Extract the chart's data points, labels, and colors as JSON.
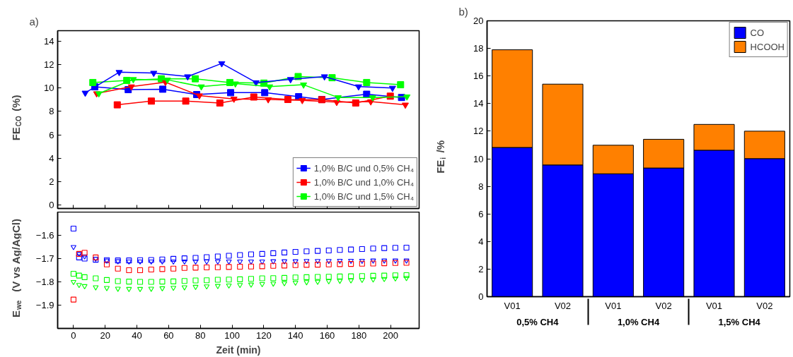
{
  "chart_data": [
    {
      "type": "line",
      "ylabel": "FE$_{CO}$ (%)",
      "annotations": [
        "a)"
      ],
      "xlim": [
        -10,
        218
      ],
      "ylim": [
        -0.3,
        14.9
      ],
      "xticks": [
        0,
        20,
        40,
        60,
        80,
        100,
        120,
        140,
        160,
        180,
        200
      ],
      "yticks": [
        0,
        2,
        4,
        6,
        8,
        10,
        12,
        14
      ],
      "tick_labels": "y",
      "grid": false,
      "legend": "bottom right",
      "series": [
        {
          "name": "1,0% B/C und 0,5% CH₄",
          "color": "#0000ff",
          "marker": "square",
          "x": [
            13.4,
            34.5,
            56.3,
            77.7,
            99.1,
            120.6,
            142,
            156.6,
            184.9,
            206.9
          ],
          "values": [
            10.1,
            9.86,
            9.9,
            9.44,
            9.6,
            9.6,
            9.26,
            9.02,
            9.47,
            9.19
          ]
        },
        {
          "name": "1,0% B/C und 1,0% CH₄",
          "color": "#ff0000",
          "marker": "square",
          "x": [
            27.6,
            49.1,
            70.8,
            92.3,
            113.7,
            135.2,
            156.6,
            178,
            199.8
          ],
          "values": [
            8.56,
            8.88,
            8.88,
            8.72,
            9.23,
            9.02,
            9.0,
            8.72,
            9.3
          ]
        },
        {
          "name": "1,0% B/C und 1,5% CH₄",
          "color": "#00ff00",
          "marker": "square",
          "x": [
            12.2,
            33.6,
            55.4,
            76.8,
            98.6,
            120.1,
            141.7,
            163.1,
            184.9,
            206.3
          ],
          "values": [
            10.47,
            10.65,
            10.79,
            10.79,
            10.47,
            10.42,
            10.98,
            10.88,
            10.47,
            10.28
          ]
        },
        {
          "color": "#0000ff",
          "marker": "triangle",
          "x": [
            7.4,
            28.8,
            50.6,
            72,
            93.5,
            115.1,
            136.9,
            158.3,
            179.8,
            201.2
          ],
          "values": [
            9.58,
            11.35,
            11.28,
            10.98,
            12.1,
            10.47,
            10.74,
            10.98,
            10.12,
            10.0
          ]
        },
        {
          "color": "#ff0000",
          "marker": "triangle",
          "x": [
            14.6,
            36.5,
            58,
            79.4,
            101.2,
            122.8,
            144.3,
            166,
            187.5,
            209.3
          ],
          "values": [
            9.53,
            10.12,
            10.5,
            9.35,
            9.07,
            9.02,
            8.95,
            8.79,
            8.84,
            8.56
          ]
        },
        {
          "color": "#00ff00",
          "marker": "triangle",
          "x": [
            16,
            37.7,
            59.2,
            80.6,
            102.1,
            123.7,
            145.1,
            166.9,
            188.7,
            210.3
          ],
          "values": [
            9.53,
            10.74,
            10.7,
            10.12,
            10.37,
            10.12,
            10.28,
            9.19,
            9.19,
            9.26
          ]
        }
      ]
    },
    {
      "type": "scatter",
      "xlabel": "Zeit (min)",
      "ylabel": "E$_{we}$  (V vs Ag/AgCl)",
      "xlim": [
        -10,
        218
      ],
      "ylim": [
        -2.0,
        -1.5
      ],
      "xticks": [
        0,
        20,
        40,
        60,
        80,
        100,
        120,
        140,
        160,
        180,
        200
      ],
      "yticks": [
        -1.9,
        -1.8,
        -1.7,
        -1.6
      ],
      "grid": false,
      "x": [
        0,
        3.5,
        7,
        14,
        21,
        28,
        35,
        42,
        49,
        56,
        63,
        70,
        77,
        84,
        91,
        98,
        105,
        112,
        119,
        126,
        133,
        140,
        147,
        154,
        161,
        168,
        175,
        182,
        189,
        196,
        203,
        210
      ],
      "series": [
        {
          "color": "#0000ff",
          "marker": "square",
          "values": [
            -1.571,
            -1.695,
            -1.7,
            -1.705,
            -1.707,
            -1.708,
            -1.708,
            -1.707,
            -1.706,
            -1.704,
            -1.701,
            -1.699,
            -1.697,
            -1.694,
            -1.691,
            -1.688,
            -1.685,
            -1.682,
            -1.68,
            -1.677,
            -1.674,
            -1.671,
            -1.669,
            -1.667,
            -1.665,
            -1.663,
            -1.661,
            -1.659,
            -1.657,
            -1.655,
            -1.654,
            -1.653
          ]
        },
        {
          "color": "#0000ff",
          "marker": "triangle",
          "values": [
            -1.65,
            -1.68,
            -1.69,
            -1.7,
            -1.708,
            -1.711,
            -1.712,
            -1.712,
            -1.712,
            -1.712,
            -1.712,
            -1.712,
            -1.712,
            -1.712,
            -1.712,
            -1.712,
            -1.712,
            -1.712,
            -1.712,
            -1.711,
            -1.711,
            -1.711,
            -1.71,
            -1.71,
            -1.71,
            -1.709,
            -1.709,
            -1.709,
            -1.708,
            -1.708,
            -1.708,
            -1.708
          ]
        },
        {
          "color": "#ff0000",
          "marker": "square",
          "values": [
            -1.876,
            -1.68,
            -1.675,
            -1.695,
            -1.725,
            -1.743,
            -1.75,
            -1.75,
            -1.747,
            -1.745,
            -1.743,
            -1.74,
            -1.739,
            -1.738,
            -1.737,
            -1.736,
            -1.735,
            -1.734,
            -1.733,
            -1.731,
            -1.73,
            -1.728,
            -1.727,
            -1.726,
            -1.725,
            -1.724,
            -1.723,
            -1.722,
            -1.721,
            -1.72,
            -1.719,
            -1.718
          ]
        },
        {
          "color": "#00ff00",
          "marker": "square",
          "values": [
            -1.765,
            -1.773,
            -1.78,
            -1.785,
            -1.792,
            -1.797,
            -1.799,
            -1.8,
            -1.8,
            -1.799,
            -1.798,
            -1.796,
            -1.794,
            -1.793,
            -1.791,
            -1.79,
            -1.789,
            -1.787,
            -1.785,
            -1.784,
            -1.783,
            -1.781,
            -1.78,
            -1.779,
            -1.778,
            -1.777,
            -1.776,
            -1.775,
            -1.774,
            -1.773,
            -1.772,
            -1.771
          ]
        },
        {
          "color": "#00ff00",
          "marker": "triangle",
          "values": [
            -1.8,
            -1.813,
            -1.818,
            -1.823,
            -1.826,
            -1.829,
            -1.83,
            -1.83,
            -1.829,
            -1.827,
            -1.825,
            -1.823,
            -1.821,
            -1.819,
            -1.817,
            -1.815,
            -1.813,
            -1.811,
            -1.809,
            -1.807,
            -1.805,
            -1.803,
            -1.801,
            -1.799,
            -1.797,
            -1.795,
            -1.793,
            -1.791,
            -1.789,
            -1.787,
            -1.785,
            -1.783
          ]
        }
      ]
    },
    {
      "type": "bar",
      "stacked": true,
      "ylabel": "FE$_{i}$ /%",
      "annotations": [
        "b)",
        "0,5% CH4",
        "1,0% CH4",
        "1,5% CH4"
      ],
      "categories": [
        "V01",
        "V02",
        "V01",
        "V02",
        "V01",
        "V02"
      ],
      "ylim": [
        0,
        20
      ],
      "yticks": [
        0,
        2,
        4,
        6,
        8,
        10,
        12,
        14,
        16,
        18,
        20
      ],
      "grid": false,
      "legend": "top right",
      "series": [
        {
          "name": "CO",
          "color": "#0000ff",
          "values": [
            10.82,
            9.55,
            8.91,
            9.33,
            10.62,
            10.01
          ]
        },
        {
          "name": "HCOOH",
          "color": "#ff8000",
          "values": [
            7.08,
            5.86,
            2.07,
            2.08,
            1.87,
            1.99
          ]
        }
      ]
    }
  ]
}
